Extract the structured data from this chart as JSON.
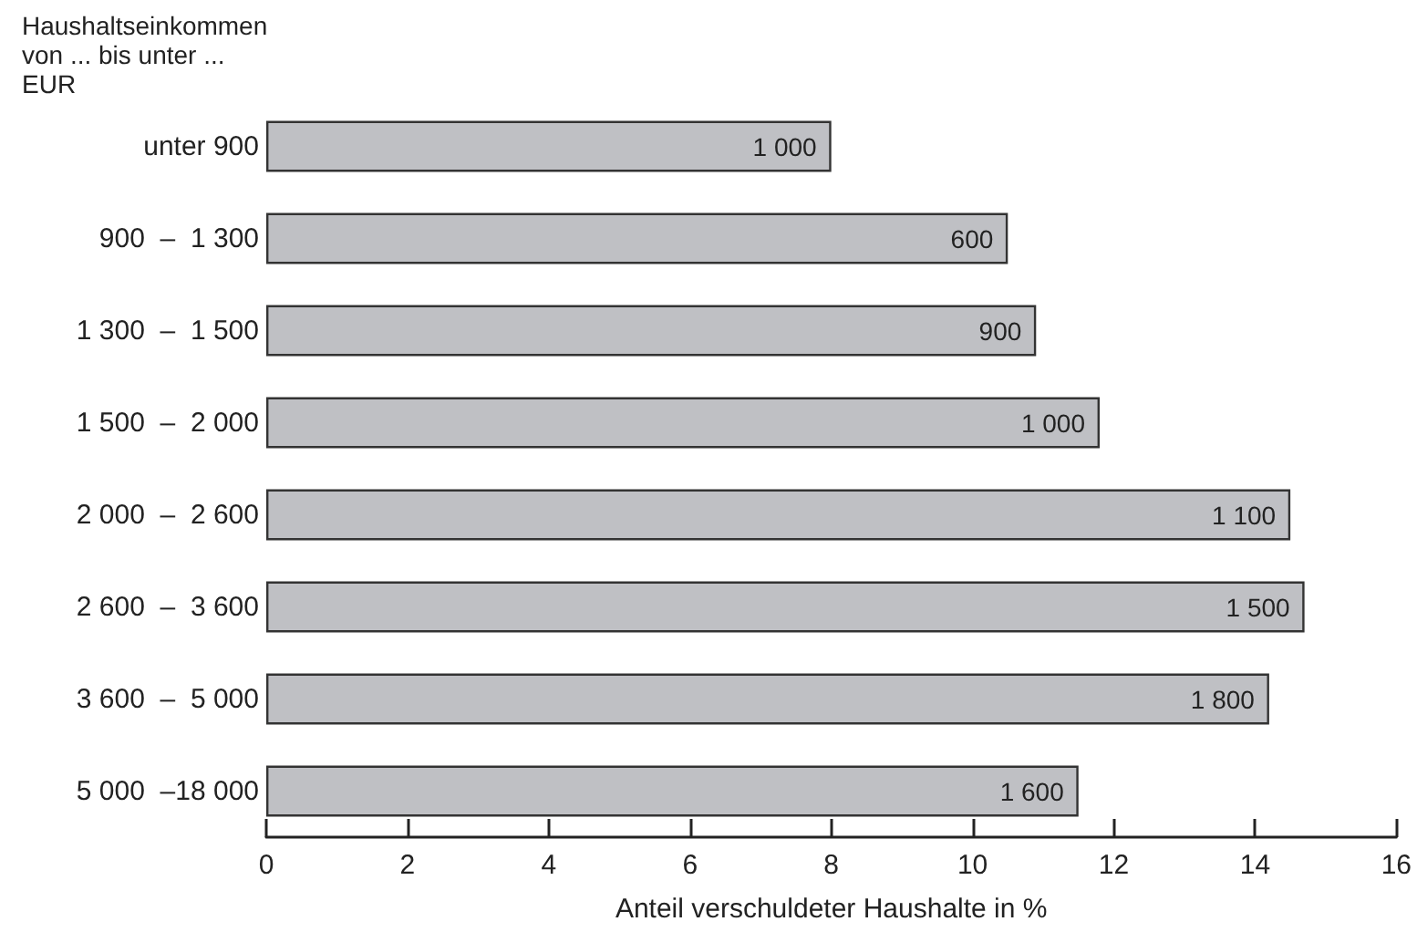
{
  "chart_data": {
    "type": "bar",
    "orientation": "horizontal",
    "ylabel": "Haushaltseinkommen\nvon ... bis unter ...\nEUR",
    "xlabel": "Anteil verschuldeter Haushalte in %",
    "categories": [
      "unter 900",
      "900  –  1 300",
      "1 300  –  1 500",
      "1 500  –  2 000",
      "2 000  –  2 600",
      "2 600  –  3 600",
      "3 600  –  5 000",
      "5 000  –18 000"
    ],
    "values": [
      8.0,
      10.5,
      10.9,
      11.8,
      14.5,
      14.7,
      14.2,
      11.5
    ],
    "annotations": [
      {
        "text": "1 000",
        "x": 8.0,
        "y": "unter 900"
      },
      {
        "text": "600",
        "x": 10.5,
        "y": "900  –  1 300"
      },
      {
        "text": "900",
        "x": 10.9,
        "y": "1 300  –  1 500"
      },
      {
        "text": "1 000",
        "x": 11.8,
        "y": "1 500  –  2 000"
      },
      {
        "text": "1 100",
        "x": 14.5,
        "y": "2 000  –  2 600"
      },
      {
        "text": "1 500",
        "x": 14.7,
        "y": "2 600  –  3 600"
      },
      {
        "text": "1 800",
        "x": 14.2,
        "y": "3 600  –  5 000"
      },
      {
        "text": "1 600",
        "x": 11.5,
        "y": "5 000  –18 000"
      }
    ],
    "color": "#bfc0c4",
    "xlim": [
      0,
      16
    ],
    "xticks": [
      0,
      2,
      4,
      6,
      8,
      10,
      12,
      14,
      16
    ],
    "grid": false
  }
}
